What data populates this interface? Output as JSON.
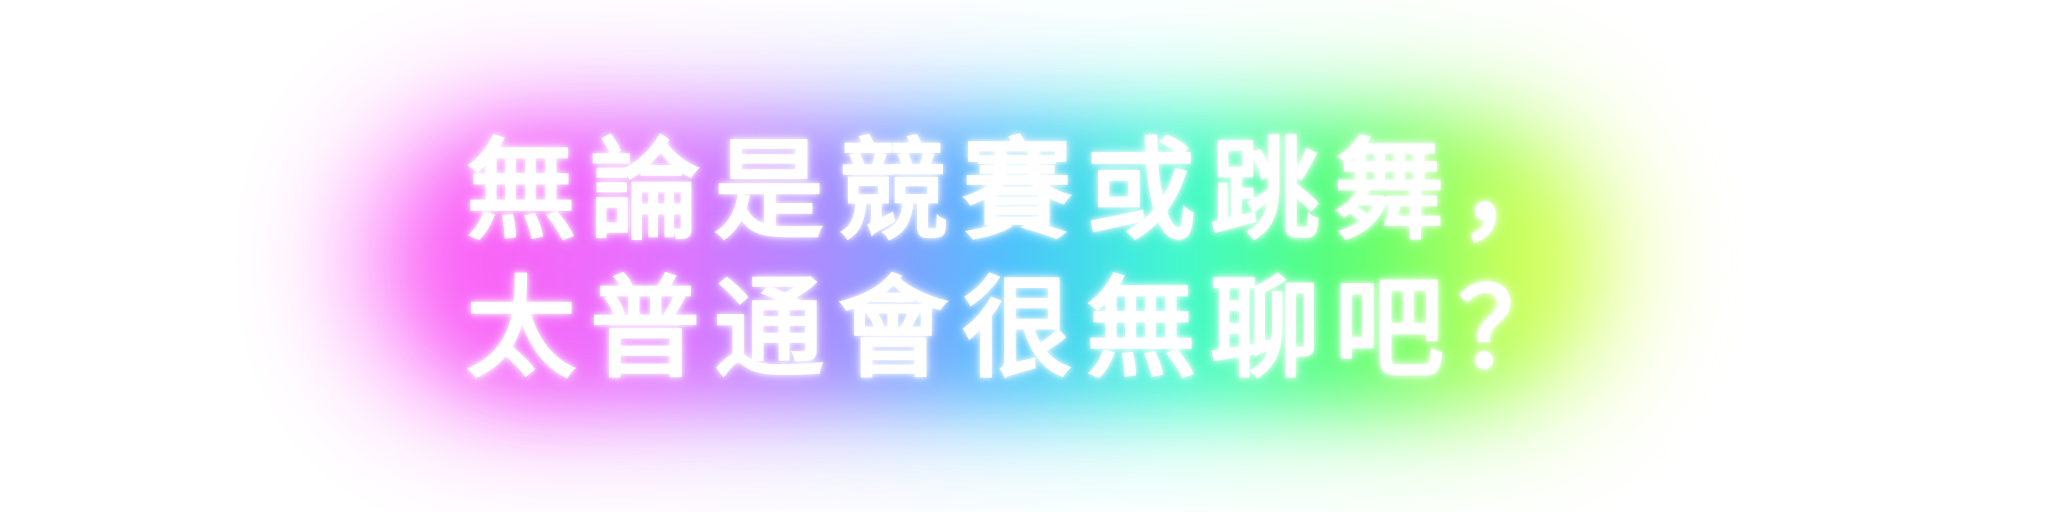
{
  "caption": {
    "line1": "無論是競賽或跳舞，",
    "line2": "太普通會很無聊吧？"
  },
  "colors": {
    "text": "#ffffff",
    "glow_gradient": [
      "#ff6ef7",
      "#b994ff",
      "#5cc9ff",
      "#52ffd8",
      "#6dff7a",
      "#f4ff62"
    ],
    "background": "#ffffff"
  }
}
